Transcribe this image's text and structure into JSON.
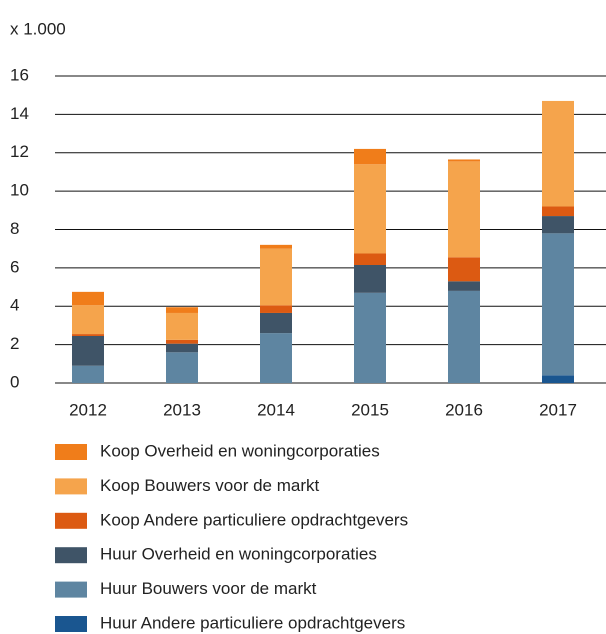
{
  "chart_data": {
    "type": "stacked_bar",
    "subtitle": "x 1.000",
    "categories": [
      "2012",
      "2013",
      "2014",
      "2015",
      "2016",
      "2017"
    ],
    "series": [
      {
        "name": "Koop Overheid en woningcorporaties",
        "color": "#f07d1a",
        "values": [
          0.7,
          0.3,
          0.2,
          0.8,
          0.1,
          0
        ]
      },
      {
        "name": "Koop Bouwers voor de markt",
        "color": "#f5a44c",
        "values": [
          1.5,
          1.4,
          2.95,
          4.65,
          5.0,
          5.5
        ]
      },
      {
        "name": "Koop Andere particuliere opdrachtgevers",
        "color": "#dc5a12",
        "values": [
          0.1,
          0.2,
          0.4,
          0.6,
          1.25,
          0.5
        ]
      },
      {
        "name": "Huur Overheid en woningcorporaties",
        "color": "#3f5467",
        "values": [
          1.55,
          0.45,
          1.05,
          1.45,
          0.5,
          0.9
        ]
      },
      {
        "name": "Huur Bouwers voor de markt",
        "color": "#5e85a1",
        "values": [
          0.9,
          1.6,
          2.6,
          4.7,
          4.8,
          7.4
        ]
      },
      {
        "name": "Huur Andere particuliere opdrachtgevers",
        "color": "#1a5690",
        "values": [
          0,
          0,
          0,
          0,
          0,
          0.4
        ]
      }
    ],
    "ylim": [
      0,
      16
    ],
    "yticks": [
      0,
      2,
      4,
      6,
      8,
      10,
      12,
      14,
      16
    ],
    "grid": true
  }
}
